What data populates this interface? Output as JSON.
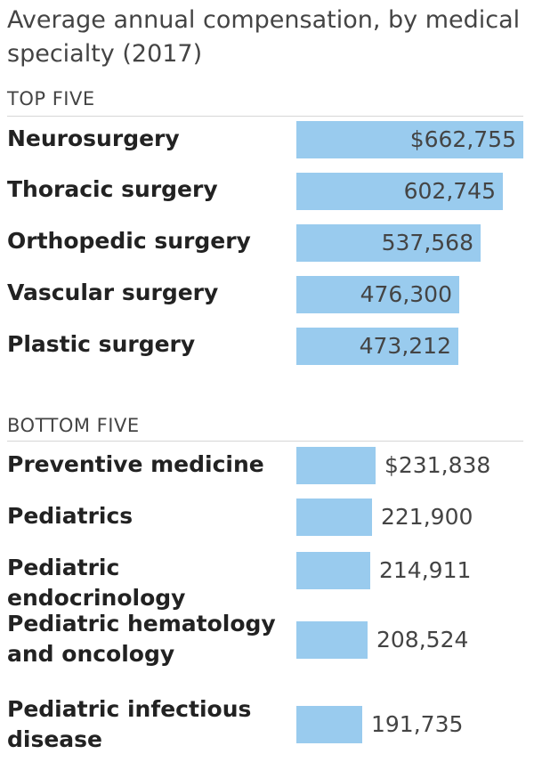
{
  "chart_data": {
    "type": "bar",
    "orientation": "horizontal",
    "title": "Average annual compensation, by medical specialty (2017)",
    "unit": "$",
    "groups": [
      {
        "label": "TOP FIVE",
        "categories": [
          "Neurosurgery",
          "Thoracic surgery",
          "Orthopedic surgery",
          "Vascular surgery",
          "Plastic surgery"
        ],
        "values": [
          662755,
          602745,
          537568,
          476300,
          473212
        ],
        "value_labels": [
          "$662,755",
          "602,745",
          "537,568",
          "476,300",
          "473,212"
        ],
        "label_position": "inside-right"
      },
      {
        "label": "BOTTOM FIVE",
        "categories": [
          "Preventive medicine",
          "Pediatrics",
          "Pediatric endocrinology",
          "Pediatric hematology and oncology",
          "Pediatric infectious disease"
        ],
        "values": [
          231838,
          221900,
          214911,
          208524,
          191735
        ],
        "value_labels": [
          "$231,838",
          "221,900",
          "214,911",
          "208,524",
          "191,735"
        ],
        "label_position": "outside-right"
      }
    ],
    "bar_color": "#99cbee",
    "grid": false,
    "legend": "none"
  }
}
